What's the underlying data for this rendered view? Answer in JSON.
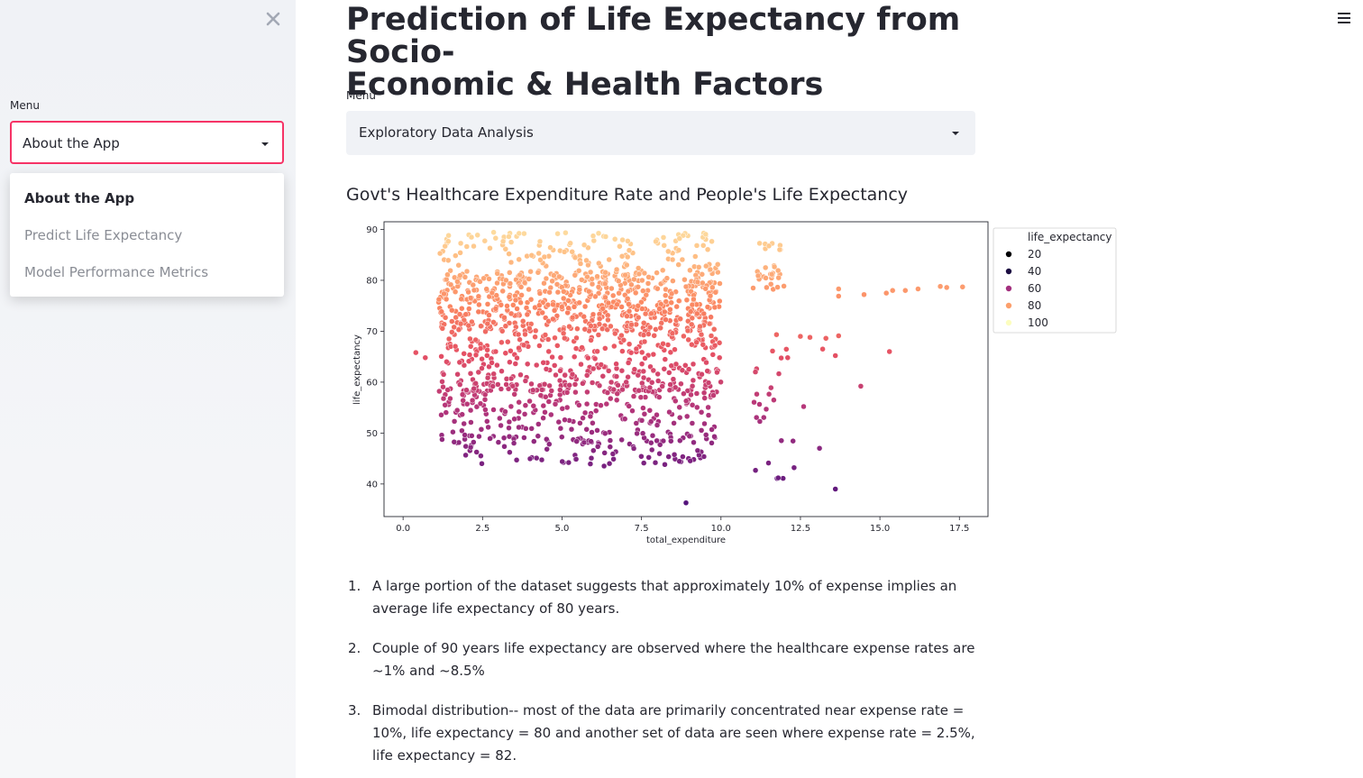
{
  "sidebar": {
    "close_icon": "close-icon",
    "menu_label": "Menu",
    "selected": "About the App",
    "options": [
      "About the App",
      "Predict Life Expectancy",
      "Model Performance Metrics"
    ],
    "accent_color": "#f63366"
  },
  "main": {
    "title_line1": "Prediction of Life Expectancy from Socio-",
    "title_line2": "Economic & Health Factors",
    "menu_label": "Menu",
    "selected": "Exploratory Data Analysis",
    "section_title": "Govt's Healthcare Expenditure Rate and People's Life Expectancy",
    "hamburger_icon": "hamburger-icon",
    "notes": [
      {
        "num": "1.",
        "text": "A large portion of the dataset suggests that approximately 10% of expense implies an average life expectancy of 80 years."
      },
      {
        "num": "2.",
        "text": "Couple of 90 years life expectancy are observed where the healthcare expense rates are ~1% and ~8.5%"
      },
      {
        "num": "3.",
        "text": "Bimodal distribution-- most of the data are primarily concentrated near expense rate = 10%, life expectancy = 80 and another set of data are seen where expense rate = 2.5%, life expectancy = 82."
      }
    ]
  },
  "chart_data": {
    "type": "scatter",
    "xlabel": "total_expenditure",
    "ylabel": "life_expectancy",
    "xlim": [
      -0.6,
      18.4
    ],
    "ylim": [
      33.6,
      91.5
    ],
    "xticks": [
      0.0,
      2.5,
      5.0,
      7.5,
      10.0,
      12.5,
      15.0,
      17.5
    ],
    "xtick_labels": [
      "0.0",
      "2.5",
      "5.0",
      "7.5",
      "10.0",
      "12.5",
      "15.0",
      "17.5"
    ],
    "yticks": [
      40,
      50,
      60,
      70,
      80,
      90
    ],
    "ytick_labels": [
      "40",
      "50",
      "60",
      "70",
      "80",
      "90"
    ],
    "hue": "life_expectancy",
    "colormap": "magma",
    "legend": {
      "title": "life_expectancy",
      "position": "outside-right",
      "entries": [
        {
          "label": "20",
          "color": "#000004"
        },
        {
          "label": "40",
          "color": "#1b0c41"
        },
        {
          "label": "60",
          "color": "#a3307e"
        },
        {
          "label": "80",
          "color": "#fc9f6c"
        },
        {
          "label": "100",
          "color": "#fcfdbf"
        }
      ]
    },
    "clusters": [
      {
        "xmin": 1.1,
        "xmax": 10.0,
        "ymin": 70,
        "ymax": 82,
        "count": 600
      },
      {
        "xmin": 1.1,
        "xmax": 10.0,
        "ymin": 58,
        "ymax": 70,
        "count": 320
      },
      {
        "xmin": 1.2,
        "xmax": 9.9,
        "ymin": 48,
        "ymax": 60,
        "count": 260
      },
      {
        "xmin": 1.4,
        "xmax": 9.5,
        "ymin": 43.5,
        "ymax": 49,
        "count": 80
      },
      {
        "xmin": 1.1,
        "xmax": 9.9,
        "ymin": 82,
        "ymax": 89.5,
        "count": 130
      },
      {
        "xmin": 11.0,
        "xmax": 12.0,
        "ymin": 78,
        "ymax": 83,
        "count": 25
      },
      {
        "xmin": 11.2,
        "xmax": 11.9,
        "ymin": 86,
        "ymax": 89,
        "count": 8
      },
      {
        "xmin": 11.0,
        "xmax": 12.3,
        "ymin": 41,
        "ymax": 70,
        "count": 22
      }
    ],
    "outliers": [
      {
        "x": 0.4,
        "y": 65.8
      },
      {
        "x": 0.7,
        "y": 64.8
      },
      {
        "x": 8.9,
        "y": 36.3
      },
      {
        "x": 13.6,
        "y": 39.0
      },
      {
        "x": 13.1,
        "y": 47.0
      },
      {
        "x": 12.6,
        "y": 55.2
      },
      {
        "x": 12.5,
        "y": 69.0
      },
      {
        "x": 12.8,
        "y": 68.8
      },
      {
        "x": 13.3,
        "y": 68.6
      },
      {
        "x": 13.7,
        "y": 69.1
      },
      {
        "x": 13.2,
        "y": 66.5
      },
      {
        "x": 14.4,
        "y": 59.2
      },
      {
        "x": 15.3,
        "y": 66.0
      },
      {
        "x": 13.6,
        "y": 65.2
      },
      {
        "x": 13.7,
        "y": 78.3
      },
      {
        "x": 13.7,
        "y": 76.9
      },
      {
        "x": 14.5,
        "y": 77.2
      },
      {
        "x": 15.2,
        "y": 77.5
      },
      {
        "x": 15.4,
        "y": 78.0
      },
      {
        "x": 15.8,
        "y": 78.0
      },
      {
        "x": 16.2,
        "y": 78.3
      },
      {
        "x": 16.9,
        "y": 78.8
      },
      {
        "x": 17.1,
        "y": 78.6
      },
      {
        "x": 17.6,
        "y": 78.7
      },
      {
        "x": 12.3,
        "y": 43.2
      },
      {
        "x": 11.9,
        "y": 48.5
      },
      {
        "x": 12.1,
        "y": 64.8
      },
      {
        "x": 11.8,
        "y": 41.2
      }
    ]
  }
}
